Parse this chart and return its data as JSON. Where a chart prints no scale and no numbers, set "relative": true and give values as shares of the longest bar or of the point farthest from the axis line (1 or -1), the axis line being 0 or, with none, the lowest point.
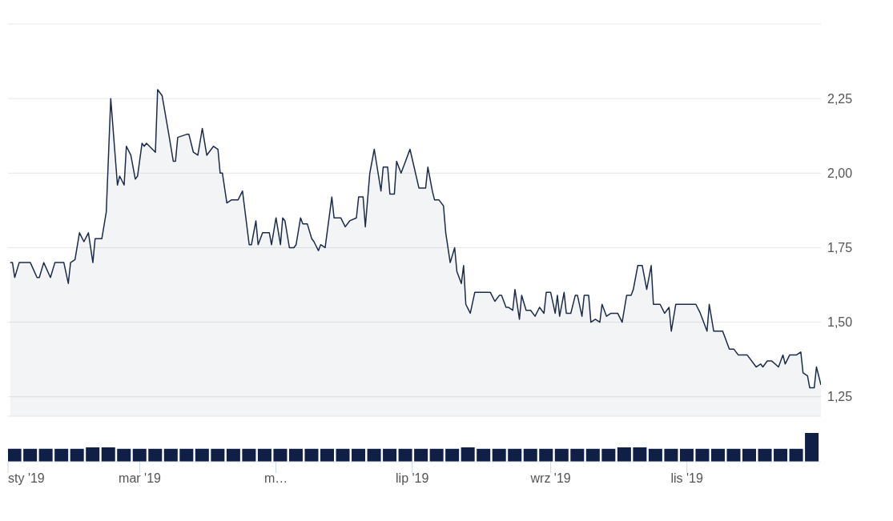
{
  "chart_data": [
    {
      "type": "area",
      "xlim": [
        "2019-01-01",
        "2019-12-31"
      ],
      "ylim": [
        1.185,
        2.5
      ],
      "yticks": [
        {
          "value": 1.25,
          "label": "1,25"
        },
        {
          "value": 1.5,
          "label": "1,50"
        },
        {
          "value": 1.75,
          "label": "1,75"
        },
        {
          "value": 2,
          "label": "2,00"
        },
        {
          "value": 2.25,
          "label": "2,25"
        },
        {
          "value": 2.5,
          "label": null
        }
      ],
      "grid": "y",
      "tick_labels": "y",
      "series": [
        {
          "color": "#1c2b4a",
          "x": [
            "2019-01-02",
            "2019-01-03",
            "2019-01-04",
            "2019-01-06",
            "2019-01-11",
            "2019-01-14",
            "2019-01-15",
            "2019-01-17",
            "2019-01-20",
            "2019-01-22",
            "2019-01-25",
            "2019-01-26",
            "2019-01-28",
            "2019-01-29",
            "2019-01-31",
            "2019-02-02",
            "2019-02-04",
            "2019-02-06",
            "2019-02-08",
            "2019-02-09",
            "2019-02-12",
            "2019-02-14",
            "2019-02-16",
            "2019-02-19",
            "2019-02-20",
            "2019-02-22",
            "2019-02-23",
            "2019-02-25",
            "2019-02-27",
            "2019-02-28",
            "2019-03-02",
            "2019-03-03",
            "2019-03-04",
            "2019-03-08",
            "2019-03-09",
            "2019-03-11",
            "2019-03-14",
            "2019-03-16",
            "2019-03-17",
            "2019-03-18",
            "2019-03-22",
            "2019-03-23",
            "2019-03-25",
            "2019-03-27",
            "2019-03-29",
            "2019-03-31",
            "2019-04-03",
            "2019-04-05",
            "2019-04-06",
            "2019-04-07",
            "2019-04-09",
            "2019-04-11",
            "2019-04-14",
            "2019-04-16",
            "2019-04-19",
            "2019-04-20",
            "2019-04-22",
            "2019-04-23",
            "2019-04-25",
            "2019-04-28",
            "2019-04-29",
            "2019-05-01",
            "2019-05-03",
            "2019-05-04",
            "2019-05-05",
            "2019-05-07",
            "2019-05-09",
            "2019-05-10",
            "2019-05-12",
            "2019-05-13",
            "2019-05-15",
            "2019-05-17",
            "2019-05-18",
            "2019-05-20",
            "2019-05-21",
            "2019-05-23",
            "2019-05-26",
            "2019-05-27",
            "2019-05-30",
            "2019-06-01",
            "2019-06-03",
            "2019-06-06",
            "2019-06-07",
            "2019-06-09",
            "2019-06-10",
            "2019-06-12",
            "2019-06-14",
            "2019-06-17",
            "2019-06-18",
            "2019-06-20",
            "2019-06-21",
            "2019-06-23",
            "2019-06-24",
            "2019-06-26",
            "2019-06-28",
            "2019-06-30",
            "2019-07-04",
            "2019-07-07",
            "2019-07-08",
            "2019-07-10",
            "2019-07-11",
            "2019-07-13",
            "2019-07-15",
            "2019-07-16",
            "2019-07-18",
            "2019-07-20",
            "2019-07-21",
            "2019-07-23",
            "2019-07-24",
            "2019-07-25",
            "2019-07-27",
            "2019-07-29",
            "2019-08-05",
            "2019-08-07",
            "2019-08-09",
            "2019-08-10",
            "2019-08-12",
            "2019-08-13",
            "2019-08-15",
            "2019-08-16",
            "2019-08-18",
            "2019-08-19",
            "2019-08-21",
            "2019-08-23",
            "2019-08-25",
            "2019-08-27",
            "2019-08-29",
            "2019-08-30",
            "2019-09-01",
            "2019-09-03",
            "2019-09-04",
            "2019-09-05",
            "2019-09-07",
            "2019-09-08",
            "2019-09-10",
            "2019-09-12",
            "2019-09-13",
            "2019-09-15",
            "2019-09-16",
            "2019-09-18",
            "2019-09-19",
            "2019-09-21",
            "2019-09-23",
            "2019-09-24",
            "2019-09-26",
            "2019-09-28",
            "2019-10-01",
            "2019-10-03",
            "2019-10-05",
            "2019-10-07",
            "2019-10-08",
            "2019-10-10",
            "2019-10-12",
            "2019-10-14",
            "2019-10-16",
            "2019-10-17",
            "2019-10-20",
            "2019-10-22",
            "2019-10-24",
            "2019-10-25",
            "2019-10-27",
            "2019-11-05",
            "2019-11-07",
            "2019-11-10",
            "2019-11-11",
            "2019-11-13",
            "2019-11-17",
            "2019-11-20",
            "2019-11-22",
            "2019-11-24",
            "2019-11-28",
            "2019-12-01",
            "2019-12-02",
            "2019-12-04",
            "2019-12-05",
            "2019-12-07",
            "2019-12-09",
            "2019-12-12",
            "2019-12-14",
            "2019-12-15",
            "2019-12-17",
            "2019-12-20",
            "2019-12-22",
            "2019-12-23",
            "2019-12-25",
            "2019-12-26",
            "2019-12-28",
            "2019-12-29",
            "2019-12-31"
          ],
          "values": [
            1.7,
            1.7,
            1.65,
            1.7,
            1.7,
            1.65,
            1.65,
            1.7,
            1.65,
            1.7,
            1.7,
            1.7,
            1.63,
            1.7,
            1.71,
            1.8,
            1.77,
            1.8,
            1.7,
            1.78,
            1.78,
            1.87,
            2.25,
            1.96,
            1.99,
            1.96,
            2.09,
            2.06,
            1.98,
            1.99,
            2.1,
            2.09,
            2.1,
            2.07,
            2.28,
            2.26,
            2.13,
            2.04,
            2.04,
            2.12,
            2.13,
            2.13,
            2.07,
            2.06,
            2.15,
            2.06,
            2.09,
            2.08,
            2.0,
            2.0,
            1.9,
            1.91,
            1.91,
            1.94,
            1.76,
            1.76,
            1.84,
            1.76,
            1.8,
            1.8,
            1.76,
            1.85,
            1.76,
            1.85,
            1.84,
            1.75,
            1.75,
            1.76,
            1.85,
            1.83,
            1.83,
            1.78,
            1.77,
            1.74,
            1.76,
            1.75,
            1.92,
            1.85,
            1.85,
            1.82,
            1.84,
            1.85,
            1.92,
            1.92,
            1.82,
            2.0,
            2.08,
            1.94,
            2.02,
            2.02,
            1.93,
            1.93,
            2.04,
            2.0,
            2.04,
            2.08,
            1.95,
            1.95,
            2.02,
            1.94,
            1.91,
            1.91,
            1.89,
            1.8,
            1.7,
            1.75,
            1.67,
            1.63,
            1.69,
            1.56,
            1.53,
            1.6,
            1.6,
            1.57,
            1.59,
            1.59,
            1.55,
            1.55,
            1.54,
            1.61,
            1.51,
            1.59,
            1.54,
            1.54,
            1.52,
            1.55,
            1.53,
            1.6,
            1.6,
            1.53,
            1.59,
            1.52,
            1.6,
            1.53,
            1.53,
            1.59,
            1.59,
            1.52,
            1.59,
            1.59,
            1.5,
            1.51,
            1.5,
            1.56,
            1.52,
            1.53,
            1.53,
            1.5,
            1.59,
            1.59,
            1.61,
            1.69,
            1.69,
            1.61,
            1.69,
            1.56,
            1.56,
            1.53,
            1.55,
            1.47,
            1.56,
            1.56,
            1.53,
            1.47,
            1.56,
            1.47,
            1.47,
            1.41,
            1.41,
            1.39,
            1.39,
            1.36,
            1.35,
            1.36,
            1.35,
            1.37,
            1.37,
            1.35,
            1.39,
            1.36,
            1.39,
            1.39,
            1.4,
            1.33,
            1.32,
            1.28,
            1.28,
            1.35,
            1.29
          ]
        }
      ]
    },
    {
      "type": "bar",
      "relative": true,
      "xlim": [
        "2019-01-01",
        "2019-12-31"
      ],
      "xticks": [
        {
          "value": "2019-01-01",
          "label": "sty '19"
        },
        {
          "value": "2019-03-01",
          "label": "mar '19"
        },
        {
          "value": "2019-05-01",
          "label": "m…"
        },
        {
          "value": "2019-07-01",
          "label": "lip '19"
        },
        {
          "value": "2019-09-01",
          "label": "wrz '19"
        },
        {
          "value": "2019-11-01",
          "label": "lis '19"
        }
      ],
      "tick_labels": "x",
      "series": [
        {
          "color": "#0f1f45",
          "x": [
            "2019-01-04",
            "2019-01-11",
            "2019-01-18",
            "2019-01-25",
            "2019-02-01",
            "2019-02-08",
            "2019-02-15",
            "2019-02-22",
            "2019-03-01",
            "2019-03-08",
            "2019-03-15",
            "2019-03-22",
            "2019-03-29",
            "2019-04-05",
            "2019-04-12",
            "2019-04-19",
            "2019-04-26",
            "2019-05-03",
            "2019-05-10",
            "2019-05-17",
            "2019-05-24",
            "2019-05-31",
            "2019-06-07",
            "2019-06-14",
            "2019-06-21",
            "2019-06-28",
            "2019-07-05",
            "2019-07-12",
            "2019-07-19",
            "2019-07-26",
            "2019-08-02",
            "2019-08-09",
            "2019-08-16",
            "2019-08-23",
            "2019-08-30",
            "2019-09-06",
            "2019-09-13",
            "2019-09-20",
            "2019-09-27",
            "2019-10-04",
            "2019-10-11",
            "2019-10-18",
            "2019-10-25",
            "2019-11-01",
            "2019-11-08",
            "2019-11-15",
            "2019-11-22",
            "2019-11-29",
            "2019-12-06",
            "2019-12-13",
            "2019-12-20",
            "2019-12-27"
          ],
          "values": [
            0.45,
            0.45,
            0.45,
            0.45,
            0.45,
            0.5,
            0.5,
            0.45,
            0.45,
            0.45,
            0.45,
            0.45,
            0.45,
            0.45,
            0.45,
            0.45,
            0.45,
            0.45,
            0.45,
            0.45,
            0.45,
            0.45,
            0.45,
            0.45,
            0.45,
            0.45,
            0.45,
            0.45,
            0.45,
            0.5,
            0.45,
            0.45,
            0.45,
            0.45,
            0.45,
            0.45,
            0.45,
            0.45,
            0.45,
            0.5,
            0.5,
            0.45,
            0.45,
            0.45,
            0.45,
            0.45,
            0.45,
            0.45,
            0.45,
            0.45,
            0.45,
            1
          ]
        }
      ]
    }
  ]
}
